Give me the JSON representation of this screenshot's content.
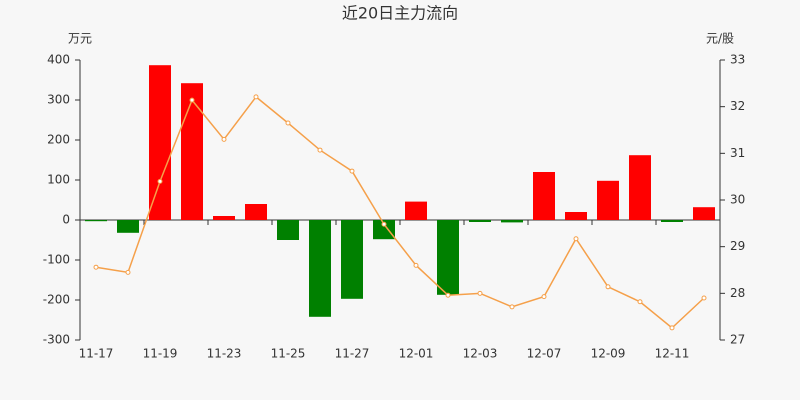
{
  "chart_data": {
    "type": "bar_line",
    "title": "近20日主力流向",
    "y_unit": "万元",
    "y2_unit": "元/股",
    "categories": [
      "11-17",
      null,
      "11-19",
      null,
      "11-23",
      null,
      "11-25",
      null,
      "11-27",
      null,
      "12-01",
      null,
      "12-03",
      null,
      "12-07",
      null,
      "12-09",
      null,
      "12-11",
      null
    ],
    "series": [
      {
        "type": "bar",
        "positive_color": "#ff0000",
        "negative_color": "#008000",
        "values": [
          -3,
          -32,
          387,
          342,
          10,
          40,
          -50,
          -242,
          -197,
          -48,
          46,
          -187,
          -5,
          -6,
          120,
          20,
          98,
          162,
          -5,
          32
        ]
      },
      {
        "type": "line",
        "axis": "y2",
        "color": "#f5a04a",
        "values": [
          28.56,
          28.45,
          30.4,
          32.14,
          31.3,
          32.21,
          31.65,
          31.07,
          30.62,
          29.48,
          28.6,
          27.96,
          28.0,
          27.71,
          27.93,
          29.17,
          28.14,
          27.82,
          27.26,
          27.9
        ]
      }
    ],
    "ylim": [
      -300,
      400
    ],
    "yticks": [
      -300,
      -200,
      -100,
      0,
      100,
      200,
      300,
      400
    ],
    "y2lim": [
      27,
      33
    ],
    "y2ticks": [
      27,
      28,
      29,
      30,
      31,
      32,
      33
    ]
  }
}
